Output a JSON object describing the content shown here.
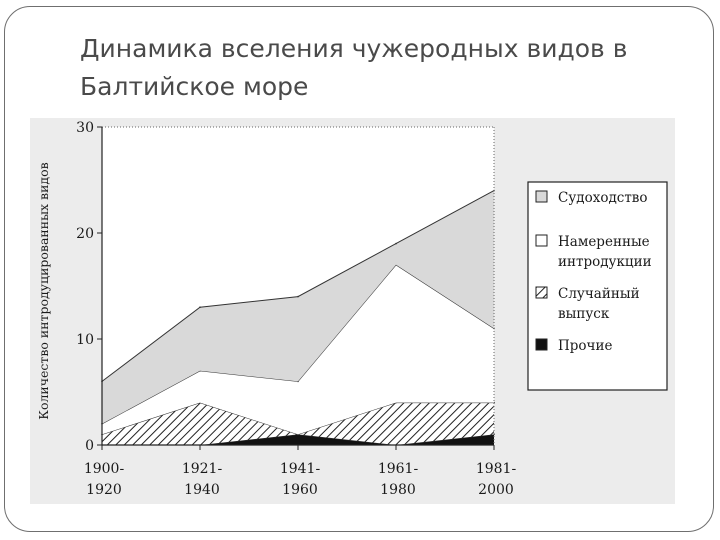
{
  "slide": {
    "title_line1": "Динамика вселения чужеродных видов в",
    "title_line2": "Балтийское море"
  },
  "chart_data": {
    "type": "area",
    "stacked": true,
    "x": [
      "1900-1920",
      "1921-1940",
      "1941-1960",
      "1961-1980",
      "1981-2000"
    ],
    "x_tick_labels": [
      [
        "1900-",
        "1920"
      ],
      [
        "1921-",
        "1940"
      ],
      [
        "1941-",
        "1960"
      ],
      [
        "1961-",
        "1980"
      ],
      [
        "1981-",
        "2000"
      ]
    ],
    "ylabel": "Количество интродуцированных видов",
    "ylim": [
      0,
      30
    ],
    "y_ticks": [
      "0",
      "10",
      "20",
      "30"
    ],
    "series": [
      {
        "name": "Прочие",
        "values": [
          0,
          0,
          1,
          0,
          1
        ],
        "fill": "#111111"
      },
      {
        "name": "Случайный выпуск",
        "values": [
          1,
          4,
          0,
          4,
          3
        ],
        "fill": "hatch"
      },
      {
        "name": "Намеренные интродукции",
        "values": [
          1,
          3,
          5,
          13,
          7
        ],
        "fill": "#ffffff"
      },
      {
        "name": "Судоходство",
        "values": [
          4,
          6,
          8,
          2,
          13
        ],
        "fill": "#d9d9d9"
      }
    ],
    "legend": {
      "placement": "right",
      "items": [
        {
          "lines": [
            "Судоходство"
          ],
          "swatch": "#d9d9d9"
        },
        {
          "lines": [
            "Намеренные",
            "интродукции"
          ],
          "swatch": "#ffffff"
        },
        {
          "lines": [
            "Случайный",
            "выпуск"
          ],
          "swatch": "hatch"
        },
        {
          "lines": [
            "Прочие"
          ],
          "swatch": "#111111"
        }
      ]
    },
    "grid": false
  }
}
